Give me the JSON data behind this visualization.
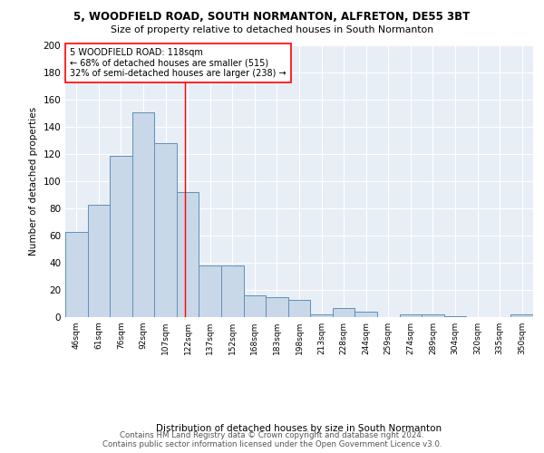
{
  "title1": "5, WOODFIELD ROAD, SOUTH NORMANTON, ALFRETON, DE55 3BT",
  "title2": "Size of property relative to detached houses in South Normanton",
  "xlabel": "Distribution of detached houses by size in South Normanton",
  "ylabel": "Number of detached properties",
  "categories": [
    "46sqm",
    "61sqm",
    "76sqm",
    "92sqm",
    "107sqm",
    "122sqm",
    "137sqm",
    "152sqm",
    "168sqm",
    "183sqm",
    "198sqm",
    "213sqm",
    "228sqm",
    "244sqm",
    "259sqm",
    "274sqm",
    "289sqm",
    "304sqm",
    "320sqm",
    "335sqm",
    "350sqm"
  ],
  "values": [
    63,
    83,
    119,
    151,
    128,
    92,
    38,
    38,
    16,
    15,
    13,
    2,
    7,
    4,
    0,
    2,
    2,
    1,
    0,
    0,
    2
  ],
  "bar_color": "#c8d8e8",
  "bar_edge_color": "#6090b8",
  "red_line_x": 4.88,
  "annotation_text_line1": "5 WOODFIELD ROAD: 118sqm",
  "annotation_text_line2": "← 68% of detached houses are smaller (515)",
  "annotation_text_line3": "32% of semi-detached houses are larger (238) →",
  "annot_box_color": "white",
  "annot_box_edge_color": "red",
  "red_line_color": "red",
  "ylim": [
    0,
    200
  ],
  "background_color": "#e8eef6",
  "footer_text": "Contains HM Land Registry data © Crown copyright and database right 2024.\nContains public sector information licensed under the Open Government Licence v3.0."
}
